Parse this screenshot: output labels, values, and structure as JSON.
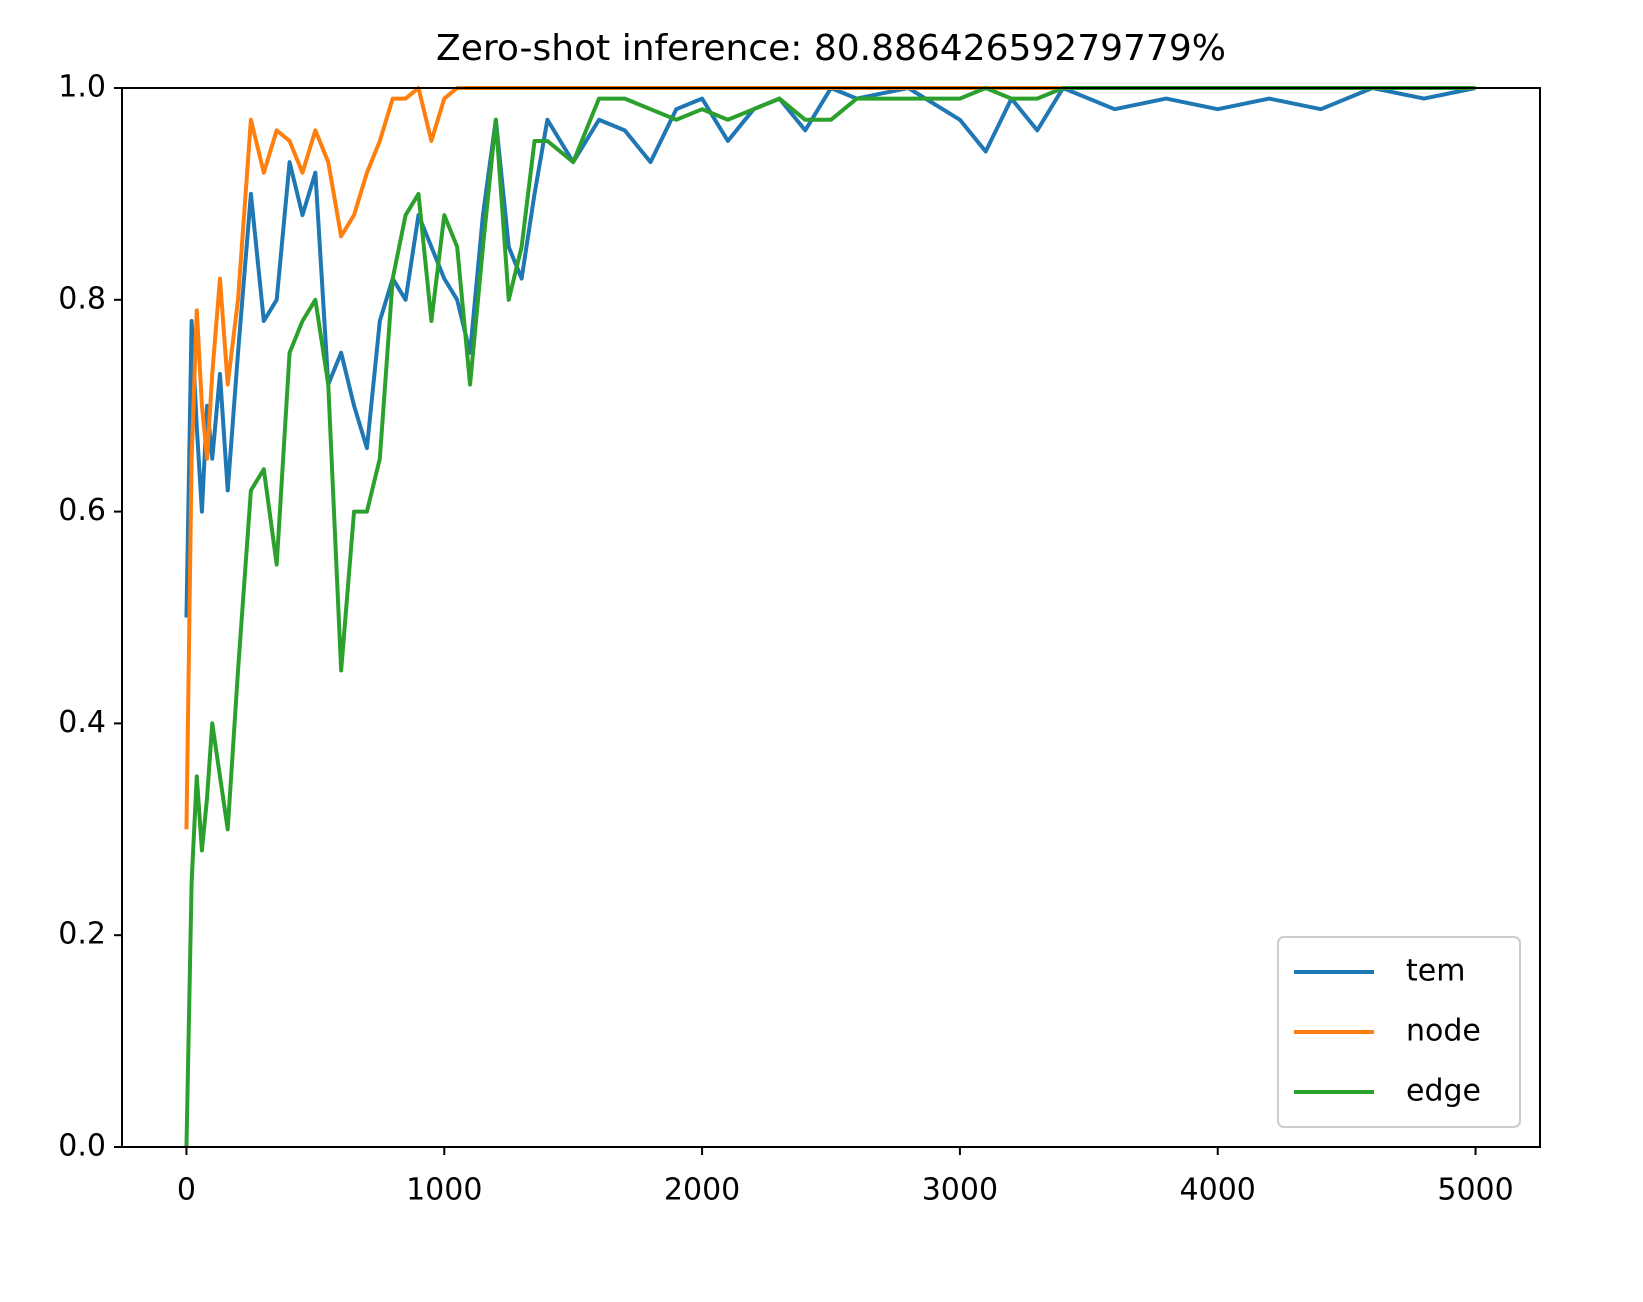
{
  "chart_data": {
    "type": "line",
    "title": "Zero-shot inference: 80.88642659279779%",
    "x": [
      0,
      20,
      40,
      60,
      80,
      100,
      130,
      160,
      200,
      250,
      300,
      350,
      400,
      450,
      500,
      550,
      600,
      650,
      700,
      750,
      800,
      850,
      900,
      950,
      1000,
      1050,
      1100,
      1150,
      1200,
      1250,
      1300,
      1350,
      1400,
      1500,
      1600,
      1700,
      1800,
      1900,
      2000,
      2100,
      2200,
      2300,
      2400,
      2500,
      2600,
      2800,
      3000,
      3100,
      3200,
      3300,
      3400,
      3600,
      3800,
      4000,
      4200,
      4400,
      4600,
      4800,
      5000
    ],
    "series": [
      {
        "name": "tem",
        "color": "#1f77b4",
        "values": [
          0.5,
          0.78,
          0.68,
          0.6,
          0.7,
          0.65,
          0.73,
          0.62,
          0.75,
          0.9,
          0.78,
          0.8,
          0.93,
          0.88,
          0.92,
          0.72,
          0.75,
          0.7,
          0.66,
          0.78,
          0.82,
          0.8,
          0.88,
          0.85,
          0.82,
          0.8,
          0.75,
          0.88,
          0.97,
          0.85,
          0.82,
          0.9,
          0.97,
          0.93,
          0.97,
          0.96,
          0.93,
          0.98,
          0.99,
          0.95,
          0.98,
          0.99,
          0.96,
          1.0,
          0.99,
          1.0,
          0.97,
          0.94,
          0.99,
          0.96,
          1.0,
          0.98,
          0.99,
          0.98,
          0.99,
          0.98,
          1.0,
          0.99,
          1.0
        ]
      },
      {
        "name": "node",
        "color": "#ff7f0e",
        "values": [
          0.3,
          0.65,
          0.79,
          0.7,
          0.65,
          0.73,
          0.82,
          0.72,
          0.8,
          0.97,
          0.92,
          0.96,
          0.95,
          0.92,
          0.96,
          0.93,
          0.86,
          0.88,
          0.92,
          0.95,
          0.99,
          0.99,
          1.0,
          0.95,
          0.99,
          1.0,
          1.0,
          1.0,
          1.0,
          1.0,
          1.0,
          1.0,
          1.0,
          1.0,
          1.0,
          1.0,
          1.0,
          1.0,
          1.0,
          1.0,
          1.0,
          1.0,
          1.0,
          1.0,
          1.0,
          1.0,
          1.0,
          1.0,
          1.0,
          1.0,
          1.0,
          1.0,
          1.0,
          1.0,
          1.0,
          1.0,
          1.0,
          1.0,
          1.0
        ]
      },
      {
        "name": "edge",
        "color": "#2ca02c",
        "values": [
          0.0,
          0.25,
          0.35,
          0.28,
          0.33,
          0.4,
          0.35,
          0.3,
          0.45,
          0.62,
          0.64,
          0.55,
          0.75,
          0.78,
          0.8,
          0.72,
          0.45,
          0.6,
          0.6,
          0.65,
          0.82,
          0.88,
          0.9,
          0.78,
          0.88,
          0.85,
          0.72,
          0.85,
          0.97,
          0.8,
          0.85,
          0.95,
          0.95,
          0.93,
          0.99,
          0.99,
          0.98,
          0.97,
          0.98,
          0.97,
          0.98,
          0.99,
          0.97,
          0.97,
          0.99,
          0.99,
          0.99,
          1.0,
          0.99,
          0.99,
          1.0,
          1.0,
          1.0,
          1.0,
          1.0,
          1.0,
          1.0,
          1.0,
          1.0
        ]
      }
    ],
    "xlim": [
      -250,
      5250
    ],
    "ylim": [
      0,
      1
    ],
    "xticks": [
      0,
      1000,
      2000,
      3000,
      4000,
      5000
    ],
    "yticks": [
      {
        "value": 0,
        "label": "0.0"
      },
      0.2,
      0.4,
      0.6,
      0.8,
      {
        "value": 1,
        "label": "1.0"
      }
    ],
    "legend": "lower right"
  }
}
